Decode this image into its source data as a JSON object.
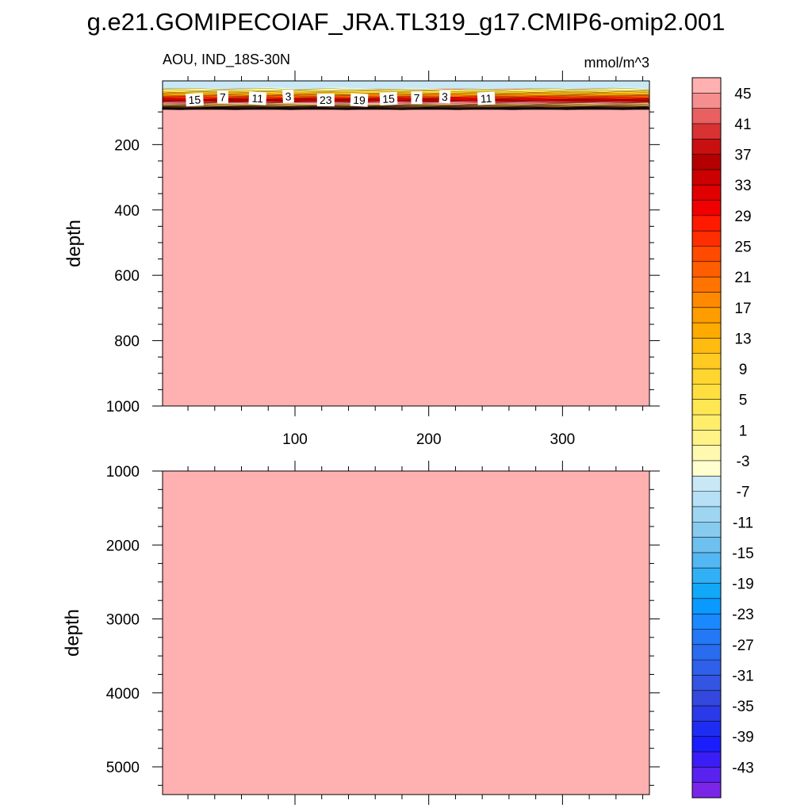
{
  "figure": {
    "title": "g.e21.GOMIPECOIAF_JRA.TL319_g17.CMIP6-omip2.001",
    "panel_left_label": "AOU, IND_18S-30N",
    "panel_right_label": "mmol/m^3"
  },
  "chart_data": [
    {
      "type": "heatmap",
      "panel": "upper",
      "ylabel": "depth",
      "xlabel": "",
      "xlim": [
        1,
        365
      ],
      "ylim": [
        1000,
        5
      ],
      "y_reversed": true,
      "x_ticks": [
        100,
        200,
        300
      ],
      "y_ticks": [
        200,
        400,
        600,
        800,
        1000
      ],
      "field_description_levels": {
        "surface_band_value": -1,
        "gradient_top_depth": 28,
        "gradient_bottom_depth": 90,
        "deep_value": 47
      },
      "contour_labels": [
        {
          "x": 25,
          "depth": 65,
          "text": "15"
        },
        {
          "x": 46,
          "depth": 57,
          "text": "7"
        },
        {
          "x": 72,
          "depth": 61,
          "text": "11"
        },
        {
          "x": 95,
          "depth": 55,
          "text": "3"
        },
        {
          "x": 123,
          "depth": 66,
          "text": "23"
        },
        {
          "x": 148,
          "depth": 66,
          "text": "19"
        },
        {
          "x": 170,
          "depth": 62,
          "text": "15"
        },
        {
          "x": 191,
          "depth": 59,
          "text": "7"
        },
        {
          "x": 212,
          "depth": 56,
          "text": "3"
        },
        {
          "x": 243,
          "depth": 61,
          "text": "11"
        }
      ]
    },
    {
      "type": "heatmap",
      "panel": "lower",
      "ylabel": "depth",
      "xlabel": "",
      "xlim": [
        1,
        365
      ],
      "ylim": [
        5375,
        1000
      ],
      "y_reversed": true,
      "y_ticks": [
        1000,
        2000,
        3000,
        4000,
        5000
      ],
      "uniform_value": 47
    }
  ],
  "colorbar": {
    "tick_labels": [
      "45",
      "41",
      "37",
      "33",
      "29",
      "25",
      "21",
      "17",
      "13",
      "9",
      "5",
      "1",
      "-3",
      "-7",
      "-11",
      "-15",
      "-19",
      "-23",
      "-27",
      "-31",
      "-35",
      "-39",
      "-43"
    ],
    "colors_top_to_bottom": [
      "#ffb0b0",
      "#f58e8e",
      "#e96060",
      "#d83232",
      "#c91010",
      "#b40000",
      "#cc0000",
      "#e00000",
      "#f00000",
      "#ff1a00",
      "#ff2e00",
      "#ff4a00",
      "#ff5e00",
      "#ff7300",
      "#ff8a00",
      "#ff9d00",
      "#ffaa00",
      "#ffbb10",
      "#ffcb22",
      "#ffd530",
      "#ffdf40",
      "#ffe754",
      "#ffee6c",
      "#fff388",
      "#fff9b0",
      "#ffffd0",
      "#c8e8f5",
      "#b5e0f5",
      "#9ed6f2",
      "#87cbef",
      "#6ec0ee",
      "#52b7f2",
      "#32b0f5",
      "#12a8f8",
      "#0a9aff",
      "#1a88ff",
      "#2478f5",
      "#2a6cef",
      "#2f60ea",
      "#3355e2",
      "#3548de",
      "#2a3ae8",
      "#1f2df3",
      "#1a1eff",
      "#3a1ef5",
      "#5a22ee",
      "#7a26e8"
    ]
  },
  "colors": {
    "deep_fill": "#ffb0b0",
    "surface_fill": "#c8e8f5"
  }
}
